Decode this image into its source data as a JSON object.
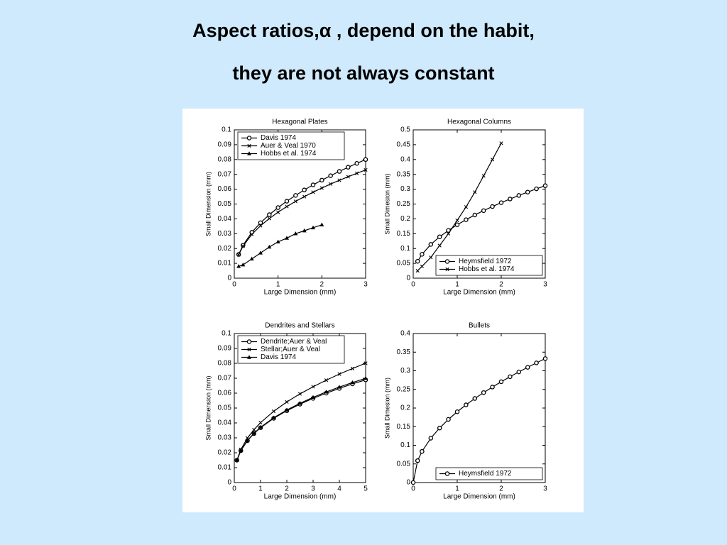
{
  "slide": {
    "title_lines": [
      "Aspect ratios,α , depend on the habit,",
      "they are not always constant"
    ]
  },
  "chart_data": [
    {
      "type": "line",
      "title": "Hexagonal Plates",
      "xlabel": "Large Dimension (mm)",
      "ylabel": "Small Dimension (mm)",
      "x": [
        0.1,
        0.2,
        0.4,
        0.6,
        0.8,
        1.0,
        1.2,
        1.4,
        1.6,
        1.8,
        2.0,
        2.2,
        2.4,
        2.6,
        2.8,
        3.0
      ],
      "series": [
        {
          "name": "Davis 1974",
          "color": "#000000",
          "marker": "circle",
          "values": [
            0.016,
            0.0222,
            0.0309,
            0.0374,
            0.0428,
            0.0476,
            0.0519,
            0.0558,
            0.0595,
            0.0629,
            0.0661,
            0.0691,
            0.072,
            0.0748,
            0.0774,
            0.08
          ]
        },
        {
          "name": "Auer & Veal 1970",
          "color": "#000000",
          "marker": "x",
          "values": [
            0.0158,
            0.0216,
            0.0295,
            0.0354,
            0.0402,
            0.0445,
            0.0483,
            0.0518,
            0.055,
            0.058,
            0.0608,
            0.0635,
            0.066,
            0.0684,
            0.0707,
            0.073
          ]
        },
        {
          "name": "Hobbs et al. 1974",
          "color": "#000000",
          "marker": "triangle",
          "values": [
            0.008,
            0.009,
            0.013,
            0.017,
            0.021,
            0.0245,
            0.027,
            0.03,
            0.032,
            0.034,
            0.036,
            null,
            null,
            null,
            null,
            null
          ]
        }
      ],
      "xlim": [
        0,
        3
      ],
      "xticks": [
        0,
        1,
        2,
        3
      ],
      "ylim": [
        0,
        0.1
      ],
      "yticks": [
        0,
        0.01,
        0.02,
        0.03,
        0.04,
        0.05,
        0.06,
        0.07,
        0.08,
        0.09,
        0.1
      ],
      "legend": "upper left"
    },
    {
      "type": "line",
      "title": "Hexagonal Columns",
      "xlabel": "Large Dimension (mm)",
      "ylabel": "Small Dimesion (mm)",
      "x": [
        0.1,
        0.2,
        0.4,
        0.6,
        0.8,
        1.0,
        1.2,
        1.4,
        1.6,
        1.8,
        2.0,
        2.2,
        2.4,
        2.6,
        2.8,
        3.0
      ],
      "series": [
        {
          "name": "Heymsfield 1972",
          "color": "#000000",
          "marker": "circle",
          "values": [
            0.0569,
            0.0805,
            0.1138,
            0.1394,
            0.161,
            0.18,
            0.1972,
            0.213,
            0.2277,
            0.2415,
            0.2546,
            0.267,
            0.2789,
            0.2902,
            0.3012,
            0.3118
          ]
        },
        {
          "name": "Hobbs et al. 1974",
          "color": "#000000",
          "marker": "x",
          "values": [
            0.025,
            0.04,
            0.07,
            0.11,
            0.15,
            0.195,
            0.24,
            0.29,
            0.345,
            0.4,
            0.455,
            null,
            null,
            null,
            null,
            null
          ]
        }
      ],
      "xlim": [
        0,
        3
      ],
      "xticks": [
        0,
        1,
        2,
        3
      ],
      "ylim": [
        0,
        0.5
      ],
      "yticks": [
        0,
        0.05,
        0.1,
        0.15,
        0.2,
        0.25,
        0.3,
        0.35,
        0.4,
        0.45,
        0.5
      ],
      "legend": "lower right"
    },
    {
      "type": "line",
      "title": "Dendrites and Stellars",
      "xlabel": "Large Dimension (mm)",
      "ylabel": "Small Dimension (mm)",
      "x": [
        0.1,
        0.25,
        0.5,
        0.75,
        1,
        1.5,
        2,
        2.5,
        3,
        3.5,
        4,
        4.5,
        5
      ],
      "series": [
        {
          "name": "Dendrite;Auer & Veal",
          "color": "#000000",
          "marker": "circle",
          "values": [
            0.015,
            0.0214,
            0.0281,
            0.0329,
            0.0368,
            0.0431,
            0.0482,
            0.0526,
            0.0565,
            0.06,
            0.0632,
            0.0662,
            0.0689
          ]
        },
        {
          "name": "Stellar;Auer & Veal",
          "color": "#000000",
          "marker": "x",
          "values": [
            0.015,
            0.0222,
            0.0299,
            0.0355,
            0.0402,
            0.0478,
            0.0541,
            0.0595,
            0.0643,
            0.0687,
            0.0728,
            0.0765,
            0.0801
          ]
        },
        {
          "name": "Davis 1974",
          "color": "#000000",
          "marker": "triangle",
          "values": [
            0.015,
            0.0215,
            0.0282,
            0.0331,
            0.0371,
            0.0435,
            0.0487,
            0.0532,
            0.0572,
            0.0608,
            0.0641,
            0.0671,
            0.0699
          ]
        }
      ],
      "xlim": [
        0,
        5
      ],
      "xticks": [
        0,
        1,
        2,
        3,
        4,
        5
      ],
      "ylim": [
        0,
        0.1
      ],
      "yticks": [
        0,
        0.01,
        0.02,
        0.03,
        0.04,
        0.05,
        0.06,
        0.07,
        0.08,
        0.09,
        0.1
      ],
      "legend": "upper left"
    },
    {
      "type": "line",
      "title": "Bullets",
      "xlabel": "Large Dimension (mm)",
      "ylabel": "Small Dimesion (mm)",
      "x": [
        0,
        0.1,
        0.2,
        0.4,
        0.6,
        0.8,
        1.0,
        1.2,
        1.4,
        1.6,
        1.8,
        2.0,
        2.2,
        2.4,
        2.6,
        2.8,
        3.0
      ],
      "series": [
        {
          "name": "Heymsfield 1972",
          "color": "#000000",
          "marker": "circle",
          "values": [
            0,
            0.0587,
            0.0836,
            0.1191,
            0.1464,
            0.1696,
            0.19,
            0.2085,
            0.2256,
            0.2415,
            0.2564,
            0.2706,
            0.2841,
            0.2969,
            0.3093,
            0.3212,
            0.3327
          ]
        }
      ],
      "xlim": [
        0,
        3
      ],
      "xticks": [
        0,
        1,
        2,
        3
      ],
      "ylim": [
        0,
        0.4
      ],
      "yticks": [
        0,
        0.05,
        0.1,
        0.15,
        0.2,
        0.25,
        0.3,
        0.35,
        0.4
      ],
      "legend": "lower right"
    }
  ]
}
